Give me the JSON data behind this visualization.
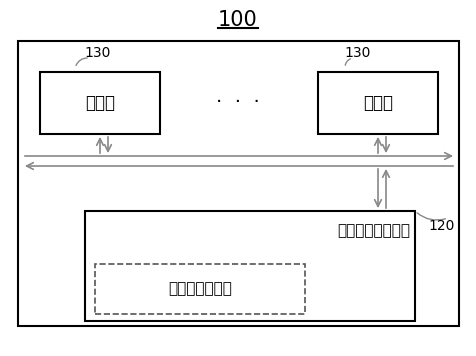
{
  "title": "100",
  "label_130_left": "130",
  "label_130_right": "130",
  "label_120": "120",
  "proc_left_text": "处理器",
  "proc_right_text": "处理器",
  "dots_text": "·  ·  ·",
  "storage_text": "机器可读存储介质",
  "executable_text": "机器可执行指令",
  "bg_color": "#ffffff",
  "border_color": "#000000",
  "arrow_gray": "#888888",
  "font_size_title": 15,
  "font_size_label": 10,
  "font_size_text": 12,
  "font_size_dots": 14
}
